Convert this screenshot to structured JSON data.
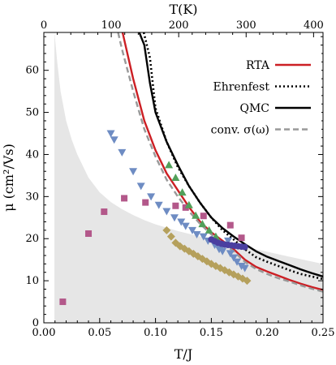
{
  "chart_data": {
    "type": "scatter",
    "xlabel": "T/J",
    "ylabel": "μ (cm²/Vs)",
    "top_xlabel": "T(K)",
    "xlim": [
      0.0,
      0.25
    ],
    "ylim": [
      0,
      69
    ],
    "top_xlim": [
      0,
      414
    ],
    "x_ticks": [
      "0.00",
      "0.05",
      "0.10",
      "0.15",
      "0.20",
      "0.25"
    ],
    "x_tick_values": [
      0.0,
      0.05,
      0.1,
      0.15,
      0.2,
      0.25
    ],
    "y_ticks": [
      "0",
      "10",
      "20",
      "30",
      "40",
      "50",
      "60"
    ],
    "y_tick_values": [
      0,
      10,
      20,
      30,
      40,
      50,
      60
    ],
    "top_ticks": [
      "0",
      "100",
      "200",
      "300",
      "400"
    ],
    "top_tick_values": [
      0,
      100,
      200,
      300,
      400
    ],
    "grid": false,
    "legend_position": "top-right",
    "shaded_region": {
      "color": "#e6e6e6",
      "boundary_x": [
        0.0095,
        0.012,
        0.015,
        0.02,
        0.025,
        0.03,
        0.04,
        0.05,
        0.06,
        0.07,
        0.08,
        0.09,
        0.1,
        0.12,
        0.14,
        0.16,
        0.18,
        0.2,
        0.22,
        0.25
      ],
      "boundary_y": [
        69,
        62,
        55,
        48,
        43.5,
        40,
        34.5,
        31,
        28.7,
        27,
        25.6,
        24.4,
        23.4,
        21.8,
        20.5,
        19.3,
        18.1,
        16.9,
        15.7,
        14.0
      ]
    },
    "series": [
      {
        "name": "RTA",
        "kind": "line",
        "color": "#cc1f24",
        "dash": "solid",
        "x": [
          0.0705,
          0.08,
          0.09,
          0.1,
          0.11,
          0.12,
          0.13,
          0.14,
          0.15,
          0.16,
          0.17,
          0.18,
          0.19,
          0.2,
          0.21,
          0.22,
          0.23,
          0.24,
          0.25
        ],
        "y": [
          69,
          58,
          48,
          41,
          35.5,
          31.5,
          27.5,
          24,
          21.5,
          19.5,
          17.5,
          15,
          13.3,
          12.2,
          11.2,
          10.2,
          9.3,
          8.5,
          7.8
        ]
      },
      {
        "name": "Ehrenfest",
        "kind": "line",
        "color": "#000000",
        "dash": "dotted",
        "x": [
          0.0895,
          0.095,
          0.1,
          0.11,
          0.12,
          0.13,
          0.14,
          0.15,
          0.16,
          0.17,
          0.18,
          0.19,
          0.2,
          0.21,
          0.22,
          0.23,
          0.24,
          0.25
        ],
        "y": [
          69,
          63,
          51,
          43,
          37,
          32.5,
          28.5,
          25,
          22,
          19.8,
          17.5,
          15.6,
          14.5,
          13.5,
          12.5,
          11.6,
          11,
          10.4
        ]
      },
      {
        "name": "QMC",
        "kind": "line",
        "color": "#000000",
        "dash": "solid",
        "x": [
          0.0855,
          0.09,
          0.095,
          0.1,
          0.11,
          0.12,
          0.13,
          0.14,
          0.15,
          0.16,
          0.17,
          0.18,
          0.19,
          0.2,
          0.21,
          0.22,
          0.23,
          0.24,
          0.25
        ],
        "y": [
          69,
          66,
          57,
          50,
          43,
          37.5,
          32.5,
          28.5,
          25,
          22.5,
          20.5,
          18.7,
          17,
          15.7,
          14.7,
          13.7,
          12.7,
          11.8,
          11
        ]
      },
      {
        "name": "conv. σ(ω)",
        "kind": "line",
        "color": "#999999",
        "dash": "dashed",
        "x": [
          0.0665,
          0.07,
          0.08,
          0.09,
          0.1,
          0.11,
          0.12,
          0.13,
          0.14,
          0.15,
          0.16,
          0.17,
          0.18,
          0.19,
          0.2,
          0.21,
          0.22,
          0.23,
          0.24,
          0.25
        ],
        "y": [
          69,
          65,
          55,
          46,
          39.5,
          34,
          30,
          26.5,
          23.5,
          21,
          19,
          17,
          14.5,
          12.8,
          11.6,
          10.6,
          9.8,
          8.9,
          8.1,
          7.4
        ]
      },
      {
        "kind": "markers",
        "marker": "square",
        "color": "#b3588a",
        "x": [
          0.017,
          0.04,
          0.054,
          0.072,
          0.091,
          0.118,
          0.127,
          0.143,
          0.167,
          0.177
        ],
        "y": [
          5,
          21.2,
          26.4,
          29.6,
          28.6,
          27.8,
          27.4,
          25.4,
          23.2,
          20.2
        ]
      },
      {
        "kind": "markers",
        "marker": "triangle-down",
        "color": "#6e8cc3",
        "x": [
          0.06,
          0.063,
          0.07,
          0.08,
          0.087,
          0.096,
          0.103,
          0.11,
          0.117,
          0.123,
          0.127,
          0.133,
          0.137,
          0.143,
          0.147,
          0.153,
          0.157,
          0.16,
          0.167,
          0.17,
          0.173,
          0.177,
          0.18,
          0.16,
          0.165
        ],
        "y": [
          45,
          43.5,
          40.5,
          36,
          32.5,
          30,
          28,
          26.5,
          25,
          24,
          23,
          22,
          21,
          20.5,
          19.5,
          18.5,
          17.5,
          17,
          16.5,
          15.5,
          14.5,
          13.5,
          13,
          18.5,
          19.5
        ]
      },
      {
        "kind": "markers",
        "marker": "diamond",
        "color": "#b5a05c",
        "x": [
          0.11,
          0.114,
          0.118,
          0.122,
          0.126,
          0.13,
          0.134,
          0.138,
          0.142,
          0.146,
          0.15,
          0.154,
          0.158,
          0.162,
          0.166,
          0.17,
          0.174,
          0.178,
          0.182
        ],
        "y": [
          22,
          20.5,
          19,
          18.2,
          17.6,
          17,
          16.4,
          15.8,
          15.2,
          14.6,
          14,
          13.5,
          13,
          12.5,
          12,
          11.5,
          11,
          10.5,
          10
        ]
      },
      {
        "kind": "markers",
        "marker": "triangle-up",
        "color": "#52a05a",
        "x": [
          0.112,
          0.118,
          0.124,
          0.13,
          0.136,
          0.142,
          0.148,
          0.154
        ],
        "y": [
          37.5,
          34.5,
          31,
          28,
          25.5,
          23.5,
          22,
          20.5
        ]
      },
      {
        "kind": "markers",
        "marker": "circle",
        "color": "#4a3fa0",
        "x": [
          0.15,
          0.153,
          0.156,
          0.159,
          0.162,
          0.165,
          0.168,
          0.171,
          0.174,
          0.177,
          0.18
        ],
        "y": [
          19.8,
          19.4,
          19.0,
          18.8,
          18.6,
          18.5,
          18.4,
          18.3,
          18.2,
          18.1,
          18.0
        ]
      }
    ]
  }
}
